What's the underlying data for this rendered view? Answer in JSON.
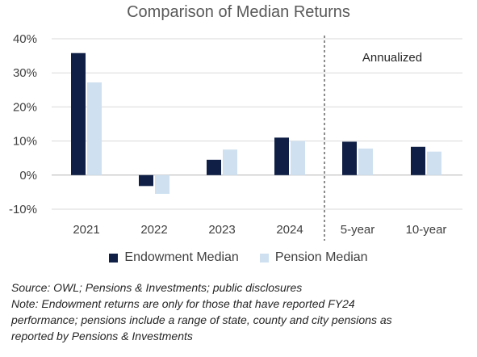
{
  "chart_data": {
    "type": "bar",
    "title": "Comparison of Median Returns",
    "categories": [
      "2021",
      "2022",
      "2023",
      "2024",
      "5-year",
      "10-year"
    ],
    "series": [
      {
        "name": "Endowment Median",
        "values": [
          35.8,
          -3.2,
          4.5,
          11.0,
          9.8,
          8.3
        ]
      },
      {
        "name": "Pension Median",
        "values": [
          27.2,
          -5.5,
          7.5,
          10.0,
          7.8,
          6.9
        ]
      }
    ],
    "y_ticks": [
      "40%",
      "30%",
      "20%",
      "10%",
      "0%",
      "-10%"
    ],
    "ylim": [
      -10,
      40
    ],
    "grid": true,
    "annotation": "Annualized",
    "divider_after_category": "2024",
    "legend_position": "bottom",
    "colors": {
      "endowment": "#0f1f45",
      "pension": "#cfe1f0",
      "grid": "#d9d9d9",
      "axis": "#bfbfbf"
    }
  },
  "notes": {
    "source": "Source: OWL; Pensions & Investments; public disclosures",
    "note_line1": "Note: Endowment returns are only for those that have reported FY24",
    "note_line2": "performance; pensions include a range of state, county and city pensions as",
    "note_line3": "reported by Pensions & Investments"
  }
}
